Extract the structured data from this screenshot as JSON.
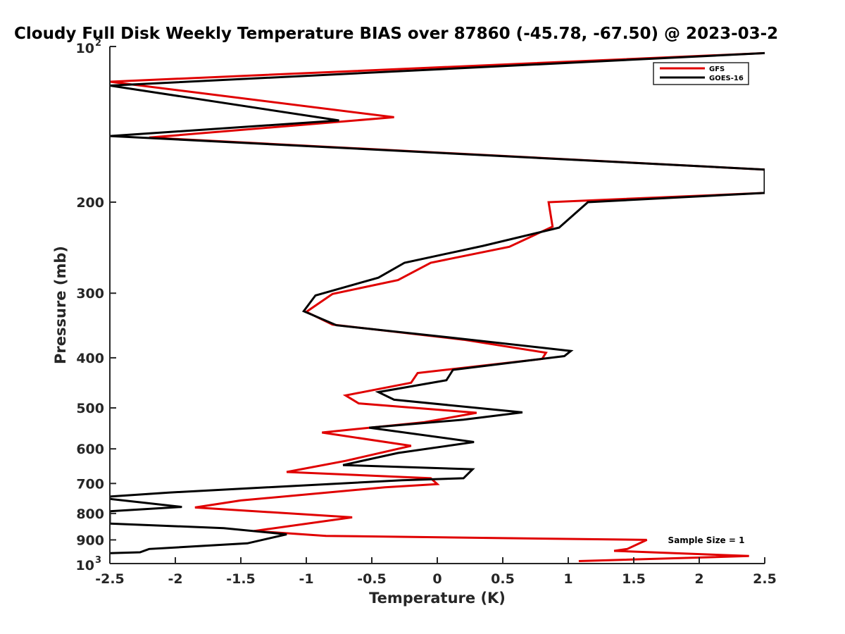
{
  "chart_data": {
    "type": "line",
    "title": "Cloudy Full Disk Weekly Temperature BIAS over 87860 (-45.78, -67.50) @ 2023-03-2",
    "xlabel": "Temperature (K)",
    "ylabel": "Pressure (mb)",
    "xlim": [
      -2.5,
      2.5
    ],
    "ylim": [
      100,
      1000
    ],
    "y_scale": "log",
    "y_reversed": true,
    "xticks": [
      -2.5,
      -2,
      -1.5,
      -1,
      -0.5,
      0,
      0.5,
      1,
      1.5,
      2,
      2.5
    ],
    "xtick_labels": [
      "-2.5",
      "-2",
      "-1.5",
      "-1",
      "-0.5",
      "0",
      "0.5",
      "1",
      "1.5",
      "2",
      "2.5"
    ],
    "yticks": [
      200,
      300,
      400,
      500,
      600,
      700,
      800,
      900
    ],
    "ytick_labels": [
      "200",
      "300",
      "400",
      "500",
      "600",
      "700",
      "800",
      "900"
    ],
    "ytick_power_labels": [
      {
        "value": 100,
        "base": "10",
        "exp": "2"
      },
      {
        "value": 1000,
        "base": "10",
        "exp": "3"
      }
    ],
    "legend_position": "top-right",
    "annotation": "Sample Size = 1",
    "series": [
      {
        "name": "GFS",
        "color": "#e00000",
        "points": [
          [
            2.5,
            103
          ],
          [
            -2.5,
            117
          ],
          [
            -0.33,
            137
          ],
          [
            -2.2,
            150
          ],
          [
            2.5,
            173
          ],
          [
            2.5,
            192
          ],
          [
            0.85,
            200
          ],
          [
            0.88,
            223
          ],
          [
            0.55,
            244
          ],
          [
            -0.05,
            262
          ],
          [
            -0.3,
            283
          ],
          [
            -0.8,
            301
          ],
          [
            -1.0,
            326
          ],
          [
            -0.8,
            345
          ],
          [
            0.2,
            369
          ],
          [
            0.83,
            391
          ],
          [
            0.8,
            402
          ],
          [
            -0.15,
            428
          ],
          [
            -0.2,
            447
          ],
          [
            -0.7,
            473
          ],
          [
            -0.6,
            490
          ],
          [
            0.3,
            511
          ],
          [
            -0.1,
            533
          ],
          [
            -0.88,
            558
          ],
          [
            -0.2,
            592
          ],
          [
            -0.7,
            633
          ],
          [
            -1.15,
            665
          ],
          [
            -0.05,
            684
          ],
          [
            0.0,
            702
          ],
          [
            -0.4,
            712
          ],
          [
            -1.5,
            755
          ],
          [
            -1.85,
            779
          ],
          [
            -0.65,
            814
          ],
          [
            -1.4,
            865
          ],
          [
            -0.85,
            884
          ],
          [
            1.6,
            900
          ],
          [
            1.45,
            937
          ],
          [
            1.35,
            945
          ],
          [
            2.38,
            967
          ],
          [
            1.08,
            989
          ]
        ]
      },
      {
        "name": "GOES-16",
        "color": "#000000",
        "points": [
          [
            2.5,
            103
          ],
          [
            -2.5,
            119
          ],
          [
            -0.75,
            139
          ],
          [
            -2.5,
            149
          ],
          [
            2.5,
            173
          ],
          [
            2.5,
            192
          ],
          [
            1.15,
            200
          ],
          [
            0.93,
            224
          ],
          [
            0.35,
            243
          ],
          [
            -0.25,
            262
          ],
          [
            -0.45,
            280
          ],
          [
            -0.93,
            303
          ],
          [
            -1.02,
            325
          ],
          [
            -0.77,
            346
          ],
          [
            0.25,
            369
          ],
          [
            1.02,
            388
          ],
          [
            0.97,
            397
          ],
          [
            0.12,
            422
          ],
          [
            0.07,
            442
          ],
          [
            -0.45,
            466
          ],
          [
            -0.33,
            482
          ],
          [
            0.65,
            510
          ],
          [
            0.2,
            527
          ],
          [
            -0.52,
            546
          ],
          [
            0.28,
            582
          ],
          [
            -0.3,
            611
          ],
          [
            -0.72,
            645
          ],
          [
            0.27,
            657
          ],
          [
            0.2,
            684
          ],
          [
            -0.27,
            690
          ],
          [
            -2.05,
            729
          ],
          [
            -2.5,
            742
          ],
          [
            -2.5,
            750
          ],
          [
            -1.95,
            777
          ],
          [
            -2.5,
            792
          ],
          [
            -2.5,
            837
          ],
          [
            -1.63,
            854
          ],
          [
            -1.15,
            878
          ],
          [
            -1.45,
            914
          ],
          [
            -2.2,
            937
          ],
          [
            -2.27,
            951
          ],
          [
            -2.5,
            955
          ]
        ]
      }
    ]
  }
}
